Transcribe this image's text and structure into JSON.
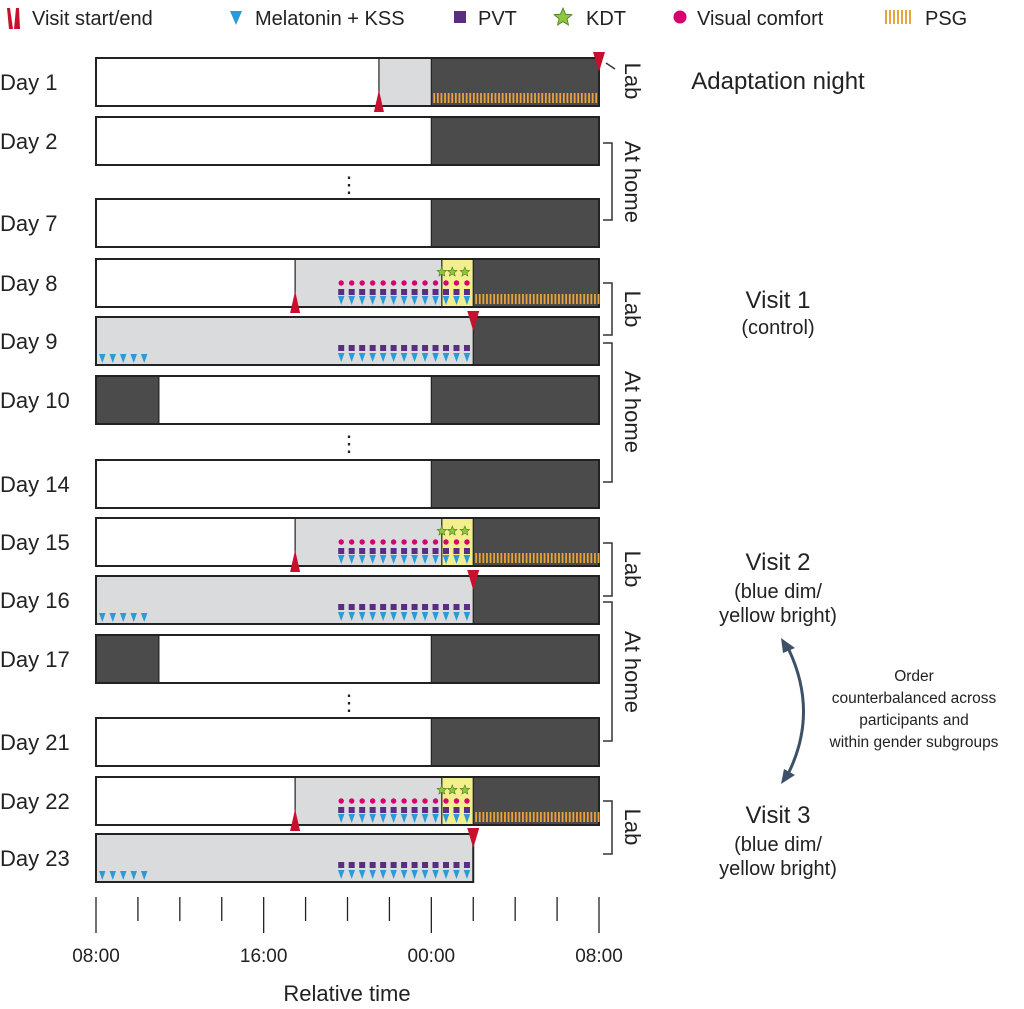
{
  "legend": [
    {
      "key": "visit",
      "label": "Visit start/end",
      "color": "#c8102e"
    },
    {
      "key": "melatonin",
      "label": "Melatonin + KSS",
      "color": "#2a9bd8"
    },
    {
      "key": "pvt",
      "label": "PVT",
      "color": "#5b2d82"
    },
    {
      "key": "kdt",
      "label": "KDT",
      "color": "#8dc63f"
    },
    {
      "key": "visual",
      "label": "Visual comfort",
      "color": "#d6006e"
    },
    {
      "key": "psg",
      "label": "PSG",
      "color": "#e8a33d"
    }
  ],
  "colors": {
    "sleep": "#4b4b4b",
    "lab": "#dadbdd",
    "home": "#ffffff",
    "kdt_bg": "#f4ef8e",
    "bracket": "#333333",
    "arrow": "#3d5166"
  },
  "days": [
    {
      "label": "Day 1",
      "segments": [
        [
          8,
          21.5,
          "home"
        ],
        [
          21.5,
          24,
          "lab"
        ],
        [
          24,
          32,
          "sleep"
        ]
      ],
      "start": 21.5,
      "end": 32,
      "psg": true
    },
    {
      "label": "Day 2",
      "segments": [
        [
          8,
          24,
          "home"
        ],
        [
          24,
          32,
          "sleep"
        ]
      ]
    },
    {
      "label": "Day 7",
      "segments": [
        [
          8,
          24,
          "home"
        ],
        [
          24,
          32,
          "sleep"
        ]
      ]
    },
    {
      "label": "Day 8",
      "segments": [
        [
          8,
          17.5,
          "home"
        ],
        [
          17.5,
          24.5,
          "lab"
        ],
        [
          24.5,
          26,
          "kdt"
        ],
        [
          26,
          32,
          "sleep"
        ]
      ],
      "start": 17.5,
      "tests": true,
      "kdt": [
        24.5,
        25,
        25.6
      ],
      "psg": true
    },
    {
      "label": "Day 9",
      "segments": [
        [
          8,
          26,
          "lab"
        ],
        [
          26,
          32,
          "sleep"
        ]
      ],
      "end": 26,
      "morning_tests": true,
      "evening_tests": true
    },
    {
      "label": "Day 10",
      "segments": [
        [
          8,
          11,
          "sleep"
        ],
        [
          11,
          24,
          "home"
        ],
        [
          24,
          32,
          "sleep"
        ]
      ]
    },
    {
      "label": "Day 14",
      "segments": [
        [
          8,
          24,
          "home"
        ],
        [
          24,
          32,
          "sleep"
        ]
      ]
    },
    {
      "label": "Day 15",
      "segments": [
        [
          8,
          17.5,
          "home"
        ],
        [
          17.5,
          24.5,
          "lab"
        ],
        [
          24.5,
          26,
          "kdt"
        ],
        [
          26,
          32,
          "sleep"
        ]
      ],
      "start": 17.5,
      "tests": true,
      "kdt": [
        24.5,
        25,
        25.6
      ],
      "psg": true
    },
    {
      "label": "Day 16",
      "segments": [
        [
          8,
          26,
          "lab"
        ],
        [
          26,
          32,
          "sleep"
        ]
      ],
      "end": 26,
      "morning_tests": true,
      "evening_tests": true
    },
    {
      "label": "Day 17",
      "segments": [
        [
          8,
          11,
          "sleep"
        ],
        [
          11,
          24,
          "home"
        ],
        [
          24,
          32,
          "sleep"
        ]
      ]
    },
    {
      "label": "Day 21",
      "segments": [
        [
          8,
          24,
          "home"
        ],
        [
          24,
          32,
          "sleep"
        ]
      ]
    },
    {
      "label": "Day 22",
      "segments": [
        [
          8,
          17.5,
          "home"
        ],
        [
          17.5,
          24.5,
          "lab"
        ],
        [
          24.5,
          26,
          "kdt"
        ],
        [
          26,
          32,
          "sleep"
        ]
      ],
      "start": 17.5,
      "tests": true,
      "kdt": [
        24.5,
        25,
        25.6
      ],
      "psg": true
    },
    {
      "label": "Day 23",
      "segments": [
        [
          8,
          26,
          "lab"
        ]
      ],
      "end": 26,
      "morning_tests": true,
      "evening_tests": true
    }
  ],
  "ellipsis": "⋮",
  "side_labels": {
    "lab": "Lab",
    "home": "At home"
  },
  "annotations": {
    "adaptation": "Adaptation night",
    "visit1": [
      "Visit 1",
      "(control)"
    ],
    "visit2": [
      "Visit 2",
      "(blue dim/",
      "yellow bright)"
    ],
    "visit3": [
      "Visit 3",
      "(blue dim/",
      "yellow bright)"
    ],
    "order": [
      "Order",
      "counterbalanced across",
      "participants and",
      "within gender subgroups"
    ]
  },
  "axis": {
    "title": "Relative time",
    "tick_labels": [
      {
        "hour": 8,
        "label": "08:00"
      },
      {
        "hour": 16,
        "label": "16:00"
      },
      {
        "hour": 24,
        "label": "00:00"
      },
      {
        "hour": 32,
        "label": "08:00"
      }
    ],
    "range": [
      8,
      32
    ],
    "minor_step": 2
  }
}
